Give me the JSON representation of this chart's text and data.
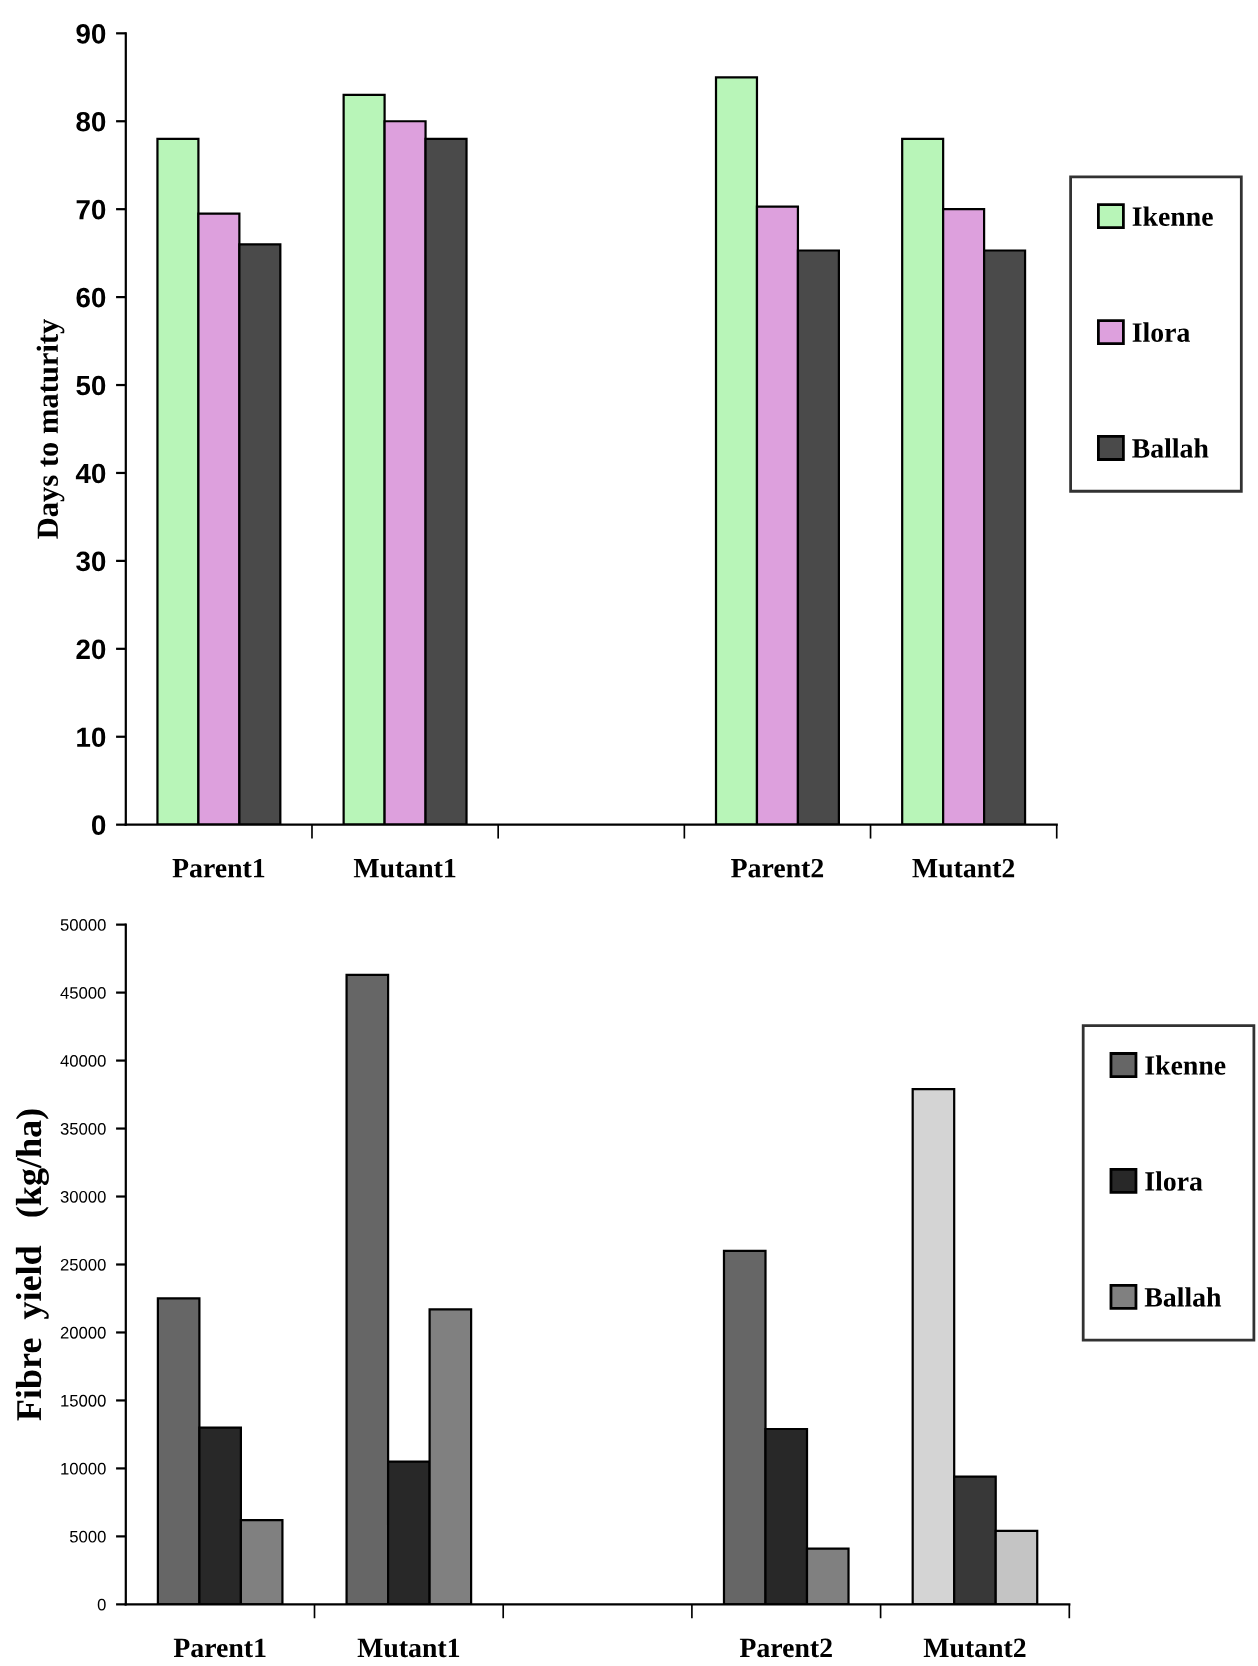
{
  "chart_data": [
    {
      "type": "bar",
      "ylabel": "Days to maturity",
      "categories": [
        "Parent1",
        "Mutant1",
        null,
        "Parent2",
        "Mutant2"
      ],
      "ylim": [
        0,
        90
      ],
      "yticks": [
        0,
        10,
        20,
        30,
        40,
        50,
        60,
        70,
        80,
        90
      ],
      "grid": false,
      "legend": "right",
      "series": [
        {
          "name": "Ikenne",
          "color": "#b8f5b8",
          "values": [
            78,
            83,
            null,
            85,
            78
          ]
        },
        {
          "name": "Ilora",
          "color": "#dda0dd",
          "values": [
            69.5,
            80,
            null,
            70.3,
            70
          ]
        },
        {
          "name": "Ballah",
          "color": "#4a4a4a",
          "values": [
            66,
            78,
            null,
            65.3,
            65.3
          ]
        }
      ]
    },
    {
      "type": "bar",
      "ylabel": "Fibre  yield   (kg/ha)",
      "categories": [
        "Parent1",
        "Mutant1",
        null,
        "Parent2",
        "Mutant2"
      ],
      "ylim": [
        0,
        50000
      ],
      "yticks": [
        0,
        5000,
        10000,
        15000,
        20000,
        25000,
        30000,
        35000,
        40000,
        45000,
        50000
      ],
      "grid": false,
      "legend": "right",
      "series": [
        {
          "name": "Ikenne",
          "color": "#666666",
          "colors": [
            "#666666",
            "#666666",
            "#666666",
            "#666666",
            "#d4d4d4"
          ],
          "values": [
            22500,
            46300,
            null,
            26000,
            37900
          ]
        },
        {
          "name": "Ilora",
          "color": "#282828",
          "colors": [
            "#282828",
            "#282828",
            "#282828",
            "#282828",
            "#383838"
          ],
          "values": [
            13000,
            10500,
            null,
            12900,
            9400
          ]
        },
        {
          "name": "Ballah",
          "color": "#808080",
          "colors": [
            "#808080",
            "#808080",
            "#808080",
            "#808080",
            "#c4c4c4"
          ],
          "values": [
            6200,
            21700,
            null,
            4100,
            5400
          ]
        }
      ]
    }
  ]
}
